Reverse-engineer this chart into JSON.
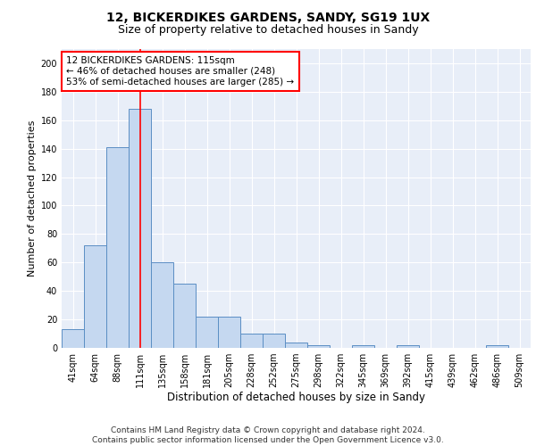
{
  "title_line1": "12, BICKERDIKES GARDENS, SANDY, SG19 1UX",
  "title_line2": "Size of property relative to detached houses in Sandy",
  "xlabel": "Distribution of detached houses by size in Sandy",
  "ylabel": "Number of detached properties",
  "bar_labels": [
    "41sqm",
    "64sqm",
    "88sqm",
    "111sqm",
    "135sqm",
    "158sqm",
    "181sqm",
    "205sqm",
    "228sqm",
    "252sqm",
    "275sqm",
    "298sqm",
    "322sqm",
    "345sqm",
    "369sqm",
    "392sqm",
    "415sqm",
    "439sqm",
    "462sqm",
    "486sqm",
    "509sqm"
  ],
  "bar_values": [
    13,
    72,
    141,
    168,
    60,
    45,
    22,
    22,
    10,
    10,
    4,
    2,
    0,
    2,
    0,
    2,
    0,
    0,
    0,
    2,
    0
  ],
  "bar_color": "#c5d8f0",
  "bar_edge_color": "#5b8ec4",
  "vline_x": 3,
  "vline_color": "red",
  "annotation_text": "12 BICKERDIKES GARDENS: 115sqm\n← 46% of detached houses are smaller (248)\n53% of semi-detached houses are larger (285) →",
  "ylim": [
    0,
    210
  ],
  "yticks": [
    0,
    20,
    40,
    60,
    80,
    100,
    120,
    140,
    160,
    180,
    200
  ],
  "background_color": "#e8eef8",
  "grid_color": "#ffffff",
  "footer_text": "Contains HM Land Registry data © Crown copyright and database right 2024.\nContains public sector information licensed under the Open Government Licence v3.0.",
  "annotation_fontsize": 7.5,
  "title1_fontsize": 10,
  "title2_fontsize": 9,
  "xlabel_fontsize": 8.5,
  "ylabel_fontsize": 8,
  "tick_fontsize": 7,
  "footer_fontsize": 6.5
}
